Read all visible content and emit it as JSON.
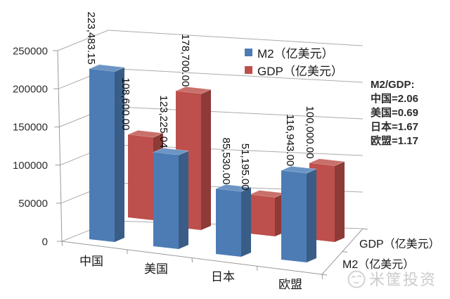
{
  "chart_data": {
    "type": "bar",
    "variant": "3d-column",
    "title": "",
    "categories": [
      "中国",
      "美国",
      "日本",
      "欧盟"
    ],
    "series": [
      {
        "name": "M2（亿美元）",
        "color": "#4D7CB5",
        "color_top": "#6C95C5",
        "color_side": "#395D86",
        "values": [
          223483.15,
          123225.04,
          85530.0,
          116943.0
        ],
        "data_labels": [
          "223,483.15",
          "123,225.04",
          "85,530.00",
          "116,943.00"
        ]
      },
      {
        "name": "GDP（亿美元）",
        "color": "#BD4F4C",
        "color_top": "#C9706B",
        "color_side": "#8E3A37",
        "values": [
          108600.0,
          178700.0,
          51195.0,
          100000.0
        ],
        "data_labels": [
          "108,600.00",
          "178,700.00",
          "51,195.00",
          "100,000.00"
        ]
      }
    ],
    "value_axis": {
      "ticks": [
        "0",
        "50000",
        "100000",
        "150000",
        "200000",
        "250000"
      ],
      "min": 0,
      "max": 250000
    },
    "depth_axis_labels": [
      "GDP（亿美元）",
      "M2（亿美元）"
    ],
    "legend": [
      {
        "label": "M2（亿美元）",
        "color": "#4D7CB5"
      },
      {
        "label": "GDP（亿美元）",
        "color": "#BD4F4C"
      }
    ],
    "grid": true,
    "legend_position": "top-right-inside",
    "grid_color": "#ababab",
    "axis_color": "#999999"
  },
  "annotation": {
    "title": "M2/GDP:",
    "lines": [
      "中国=2.06",
      "美国=0.69",
      "日本=1.67",
      "欧盟=1.17"
    ]
  },
  "watermark": {
    "text": "米筐投资",
    "logo": "smiley-circle-icon"
  }
}
